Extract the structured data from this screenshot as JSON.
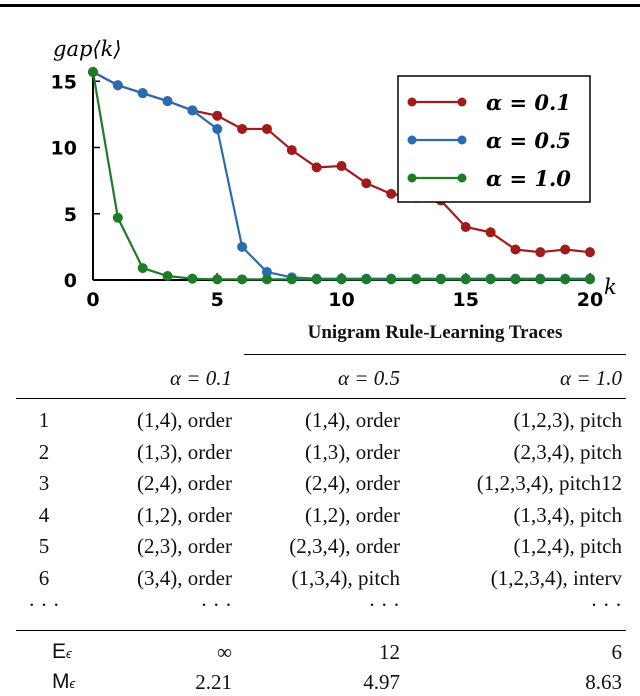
{
  "chart_data": {
    "type": "line",
    "xlabel": "k",
    "ylabel": "gap⟨k⟩",
    "xlim": [
      0,
      20
    ],
    "ylim": [
      0,
      16
    ],
    "xticks": [
      0,
      5,
      10,
      15,
      20
    ],
    "yticks": [
      0,
      5,
      10,
      15
    ],
    "legend_position": "top-right",
    "series": [
      {
        "name": "α = 0.1",
        "color": "#a11b1b",
        "x": [
          0,
          1,
          2,
          3,
          4,
          5,
          6,
          7,
          8,
          9,
          10,
          11,
          12,
          13,
          14,
          15,
          16,
          17,
          18,
          19,
          20
        ],
        "y": [
          15.7,
          14.7,
          14.1,
          13.5,
          12.8,
          12.4,
          11.4,
          11.4,
          9.8,
          8.5,
          8.6,
          7.3,
          6.5,
          6.2,
          6.0,
          4.0,
          3.6,
          2.3,
          2.1,
          2.3,
          2.1
        ]
      },
      {
        "name": "α = 0.5",
        "color": "#2b6cb0",
        "x": [
          0,
          1,
          2,
          3,
          4,
          5,
          6,
          7,
          8,
          9,
          10,
          11,
          12,
          13,
          14,
          15,
          16,
          17,
          18,
          19,
          20
        ],
        "y": [
          15.7,
          14.7,
          14.1,
          13.5,
          12.8,
          11.4,
          2.5,
          0.6,
          0.2,
          0.1,
          0.1,
          0.1,
          0.1,
          0.1,
          0.1,
          0.1,
          0.1,
          0.1,
          0.1,
          0.1,
          0.1
        ]
      },
      {
        "name": "α = 1.0",
        "color": "#1e7b28",
        "x": [
          0,
          1,
          2,
          3,
          4,
          5,
          6,
          7,
          8,
          9,
          10,
          11,
          12,
          13,
          14,
          15,
          16,
          17,
          18,
          19,
          20
        ],
        "y": [
          15.7,
          4.7,
          0.9,
          0.3,
          0.1,
          0.05,
          0.05,
          0.05,
          0.05,
          0.05,
          0.05,
          0.05,
          0.05,
          0.05,
          0.05,
          0.05,
          0.05,
          0.05,
          0.05,
          0.05,
          0.05
        ]
      }
    ]
  },
  "table": {
    "caption": "Unigram Rule-Learning Traces",
    "headers": [
      "α = 0.1",
      "α = 0.5",
      "α = 1.0"
    ],
    "rows": [
      {
        "k": "1",
        "a": "(1,4), order",
        "b": "(1,4), order",
        "c": "(1,2,3), pitch"
      },
      {
        "k": "2",
        "a": "(1,3), order",
        "b": "(1,3), order",
        "c": "(2,3,4), pitch"
      },
      {
        "k": "3",
        "a": "(2,4), order",
        "b": "(2,4), order",
        "c": "(1,2,3,4), pitch12"
      },
      {
        "k": "4",
        "a": "(1,2), order",
        "b": "(1,2), order",
        "c": "(1,3,4), pitch"
      },
      {
        "k": "5",
        "a": "(2,3), order",
        "b": "(2,3,4), order",
        "c": "(1,2,4), pitch"
      },
      {
        "k": "6",
        "a": "(3,4), order",
        "b": "(1,3,4), pitch",
        "c": "(1,2,3,4), interv"
      },
      {
        "k": "· · ·",
        "a": "· · ·",
        "b": "· · ·",
        "c": "· · ·"
      }
    ],
    "summary": [
      {
        "k": "E",
        "sub": "ϵ",
        "a": "∞",
        "b": "12",
        "c": "6"
      },
      {
        "k": "M",
        "sub": "ϵ",
        "a": "2.21",
        "b": "4.97",
        "c": "8.63"
      }
    ]
  }
}
